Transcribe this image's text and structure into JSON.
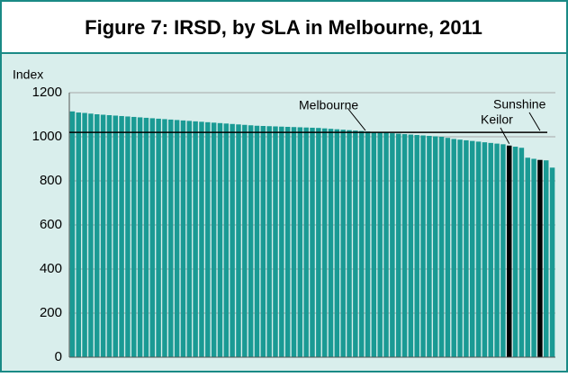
{
  "chart_data": {
    "type": "bar",
    "title": "Figure 7: IRSD, by SLA in Melbourne, 2011",
    "y_label": "Index",
    "categories": [
      null,
      null,
      null,
      null,
      null,
      null,
      null,
      null,
      null,
      null,
      null,
      null,
      null,
      null,
      null,
      null,
      null,
      null,
      null,
      null,
      null,
      null,
      null,
      null,
      null,
      null,
      null,
      null,
      null,
      null,
      null,
      null,
      null,
      null,
      null,
      null,
      null,
      null,
      null,
      null,
      null,
      null,
      null,
      null,
      null,
      null,
      null,
      null,
      null,
      null,
      null,
      null,
      null,
      null,
      null,
      null,
      null,
      null,
      null,
      null,
      null,
      null,
      null,
      null,
      null,
      null,
      null,
      null,
      null,
      null,
      null,
      null,
      null,
      null,
      null,
      null,
      null,
      null,
      null
    ],
    "values": [
      1115,
      1110,
      1108,
      1105,
      1102,
      1100,
      1098,
      1096,
      1094,
      1092,
      1090,
      1088,
      1086,
      1084,
      1082,
      1080,
      1078,
      1076,
      1074,
      1072,
      1070,
      1068,
      1066,
      1064,
      1062,
      1060,
      1058,
      1056,
      1054,
      1052,
      1050,
      1049,
      1048,
      1047,
      1046,
      1045,
      1044,
      1043,
      1042,
      1041,
      1040,
      1038,
      1036,
      1034,
      1032,
      1030,
      1028,
      1026,
      1024,
      1022,
      1020,
      1018,
      1016,
      1014,
      1012,
      1010,
      1008,
      1006,
      1004,
      1002,
      1000,
      995,
      990,
      987,
      984,
      981,
      978,
      975,
      972,
      969,
      966,
      960,
      955,
      950,
      905,
      900,
      895,
      893,
      860
    ],
    "color": "#1a9a94",
    "highlight_color": "#000000",
    "highlight": [
      71,
      76
    ],
    "annotations": [
      {
        "text": "Melbourne",
        "value": 1020
      },
      {
        "text": "Keilor"
      },
      {
        "text": "Sunshine"
      }
    ],
    "ylim": [
      0,
      1200
    ],
    "yticks": [
      0,
      200,
      400,
      600,
      800,
      1000,
      1200
    ],
    "grid": true
  }
}
